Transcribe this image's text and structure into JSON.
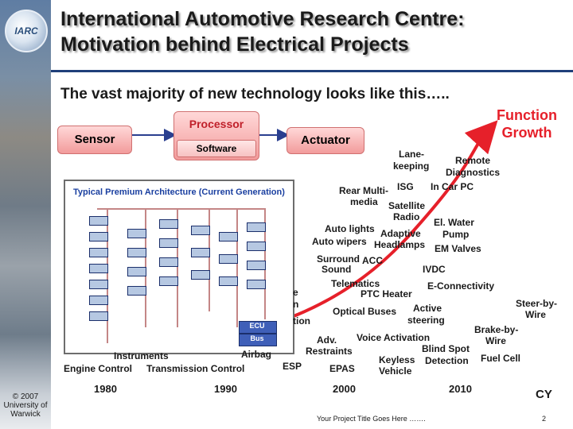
{
  "header": {
    "logo_text": "IARC",
    "title_line1": "International Automotive Research Centre:",
    "title_line2": "Motivation behind Electrical Projects",
    "subtitle": "The vast majority of new technology looks like this….."
  },
  "block_diagram": {
    "sensor": "Sensor",
    "processor": "Processor",
    "software": "Software",
    "actuator": "Actuator"
  },
  "architecture_panel": {
    "title": "Typical Premium Architecture (Current Generation)",
    "legend_ecu": "ECU",
    "legend_bus": "Bus"
  },
  "growth_label": {
    "line1": "Function",
    "line2": "Growth"
  },
  "features": {
    "lane_keeping_1": "Lane-",
    "lane_keeping_2": "keeping",
    "remote_diag_1": "Remote",
    "remote_diag_2": "Diagnostics",
    "isg": "ISG",
    "in_car_pc": "In Car PC",
    "rear_multimedia_1": "Rear Multi-",
    "rear_multimedia_2": "media",
    "satellite_radio_1": "Satellite",
    "satellite_radio_2": "Radio",
    "auto_lights": "Auto lights",
    "el_water_pump_1": "El. Water",
    "el_water_pump_2": "Pump",
    "adaptive_headlamps_1": "Adaptive",
    "adaptive_headlamps_2": "Headlamps",
    "auto_wipers": "Auto wipers",
    "em_valves": "EM Valves",
    "surround_sound_1": "Surround",
    "surround_sound_2": "Sound",
    "acc": "ACC",
    "ivdc": "IVDC",
    "telematics": "Telematics",
    "e_connectivity": "E-Connectivity",
    "ptc_heater": "PTC Heater",
    "steer_by_wire_1": "Steer-by-",
    "steer_by_wire_2": "Wire",
    "optical_buses": "Optical Buses",
    "active_steering_1": "Active",
    "active_steering_2": "steering",
    "brake_by_wire_1": "Brake-by-",
    "brake_by_wire_2": "Wire",
    "voice_activation": "Voice Activation",
    "adv_restraints_1": "Adv.",
    "adv_restraints_2": "Restraints",
    "blind_spot_detection_1": "Blind Spot",
    "blind_spot_detection_2": "Detection",
    "fuel_cell": "Fuel Cell",
    "keyless_vehicle_1": "Keyless",
    "keyless_vehicle_2": "Vehicle",
    "airbag": "Airbag",
    "esp": "ESP",
    "epas": "EPAS",
    "instruments": "Instruments",
    "engine_control": "Engine Control",
    "transmission_control": "Transmission Control",
    "partial_1": "e",
    "partial_2": "n",
    "partial_3": "tion"
  },
  "time_axis": {
    "y1980": "1980",
    "y1990": "1990",
    "y2000": "2000",
    "y2010": "2010",
    "unit": "CY"
  },
  "footer": {
    "copyright_1": "© 2007",
    "copyright_2": "University of",
    "copyright_3": "Warwick",
    "project_title": "Your Project Title Goes Here …….",
    "page": "2"
  },
  "colors": {
    "title_rule": "#1f3f7a",
    "growth_curve": "#e6202a",
    "block_fill": "#f29b9b",
    "ecu_node": "#b6c8e2",
    "legend": "#3f5fb8"
  }
}
